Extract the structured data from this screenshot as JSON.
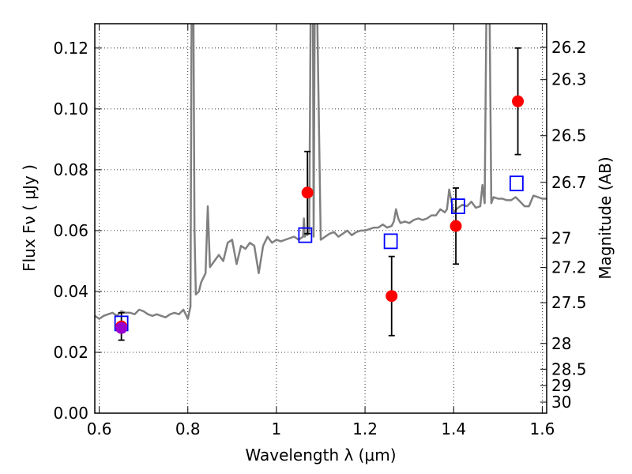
{
  "chart_data": {
    "type": "line",
    "xlabel": "Wavelength  λ (μm)",
    "ylabel": "Flux  Fν  ( μJy )",
    "y2label": "Magnitude (AB)",
    "xlim": [
      0.59,
      1.61
    ],
    "ylim": [
      0.0,
      0.128
    ],
    "grid": true,
    "x_ticks": [
      0.6,
      0.8,
      1.0,
      1.2,
      1.4,
      1.6
    ],
    "x_tick_labels": [
      "0.6",
      "0.8",
      "1",
      "1.2",
      "1.4",
      "1.6"
    ],
    "y_ticks": [
      0.0,
      0.02,
      0.04,
      0.06,
      0.08,
      0.1,
      0.12
    ],
    "y_tick_labels": [
      "0.00",
      "0.02",
      "0.04",
      "0.06",
      "0.08",
      "0.10",
      "0.12"
    ],
    "mag_ticks": [
      "26.2",
      "26.3",
      "26.5",
      "26.7",
      "27",
      "27.2",
      "27.5",
      "28",
      "28.5",
      "29",
      "30"
    ],
    "spectrum": {
      "color": "#808080",
      "x": [
        0.59,
        0.6,
        0.61,
        0.62,
        0.63,
        0.64,
        0.65,
        0.66,
        0.67,
        0.68,
        0.69,
        0.7,
        0.71,
        0.72,
        0.73,
        0.74,
        0.75,
        0.76,
        0.77,
        0.78,
        0.79,
        0.8,
        0.806,
        0.809,
        0.812,
        0.815,
        0.818,
        0.825,
        0.83,
        0.84,
        0.845,
        0.85,
        0.86,
        0.87,
        0.88,
        0.89,
        0.9,
        0.91,
        0.92,
        0.93,
        0.94,
        0.95,
        0.96,
        0.97,
        0.98,
        0.99,
        1.0,
        1.01,
        1.02,
        1.03,
        1.04,
        1.05,
        1.06,
        1.062,
        1.064,
        1.067,
        1.07,
        1.074,
        1.078,
        1.082,
        1.084,
        1.087,
        1.09,
        1.1,
        1.11,
        1.12,
        1.13,
        1.14,
        1.15,
        1.16,
        1.17,
        1.18,
        1.19,
        1.2,
        1.21,
        1.22,
        1.23,
        1.24,
        1.25,
        1.26,
        1.265,
        1.27,
        1.275,
        1.28,
        1.29,
        1.3,
        1.31,
        1.32,
        1.33,
        1.34,
        1.35,
        1.36,
        1.37,
        1.38,
        1.385,
        1.39,
        1.4,
        1.41,
        1.42,
        1.43,
        1.44,
        1.45,
        1.46,
        1.465,
        1.47,
        1.475,
        1.48,
        1.485,
        1.49,
        1.5,
        1.51,
        1.52,
        1.53,
        1.54,
        1.55,
        1.56,
        1.57,
        1.58,
        1.59,
        1.6,
        1.61
      ],
      "y": [
        0.032,
        0.031,
        0.032,
        0.0325,
        0.033,
        0.032,
        0.0335,
        0.033,
        0.033,
        0.0325,
        0.034,
        0.0335,
        0.0325,
        0.032,
        0.0325,
        0.032,
        0.0315,
        0.0325,
        0.033,
        0.0325,
        0.034,
        0.031,
        0.035,
        0.15,
        0.15,
        0.06,
        0.039,
        0.04,
        0.043,
        0.046,
        0.068,
        0.048,
        0.05,
        0.052,
        0.05,
        0.056,
        0.057,
        0.049,
        0.055,
        0.054,
        0.056,
        0.055,
        0.046,
        0.055,
        0.058,
        0.056,
        0.057,
        0.0565,
        0.057,
        0.0575,
        0.058,
        0.057,
        0.058,
        0.064,
        0.058,
        0.059,
        0.0585,
        0.06,
        0.15,
        0.15,
        0.058,
        0.15,
        0.15,
        0.057,
        0.058,
        0.059,
        0.0595,
        0.058,
        0.059,
        0.06,
        0.0585,
        0.0595,
        0.06,
        0.06,
        0.0605,
        0.061,
        0.061,
        0.062,
        0.061,
        0.0615,
        0.063,
        0.067,
        0.064,
        0.0625,
        0.063,
        0.0625,
        0.0635,
        0.064,
        0.0635,
        0.064,
        0.065,
        0.065,
        0.067,
        0.066,
        0.067,
        0.0735,
        0.066,
        0.0675,
        0.0685,
        0.068,
        0.0695,
        0.0675,
        0.068,
        0.075,
        0.069,
        0.15,
        0.15,
        0.069,
        0.071,
        0.0705,
        0.0705,
        0.07,
        0.07,
        0.071,
        0.0695,
        0.068,
        0.068,
        0.0715,
        0.071,
        0.0705,
        0.0705
      ]
    },
    "series": [
      {
        "color": "#ff0000",
        "marker": "circle",
        "points": [
          {
            "x": 0.65,
            "y": 0.0285,
            "err": 0.0045
          },
          {
            "x": 1.07,
            "y": 0.0725,
            "err": 0.0135
          },
          {
            "x": 1.26,
            "y": 0.0385,
            "err": 0.013
          },
          {
            "x": 1.405,
            "y": 0.0615,
            "err": 0.0125
          },
          {
            "x": 1.545,
            "y": 0.1025,
            "err": 0.0175
          }
        ]
      },
      {
        "color": "#0000ff",
        "marker": "open-square",
        "points": [
          {
            "x": 0.65,
            "y": 0.0295
          },
          {
            "x": 1.065,
            "y": 0.0585
          },
          {
            "x": 1.258,
            "y": 0.0565
          },
          {
            "x": 1.41,
            "y": 0.068
          },
          {
            "x": 1.542,
            "y": 0.0755
          }
        ]
      }
    ],
    "highlight": {
      "x": 0.65,
      "y": 0.028,
      "color": "#9900cc"
    }
  }
}
